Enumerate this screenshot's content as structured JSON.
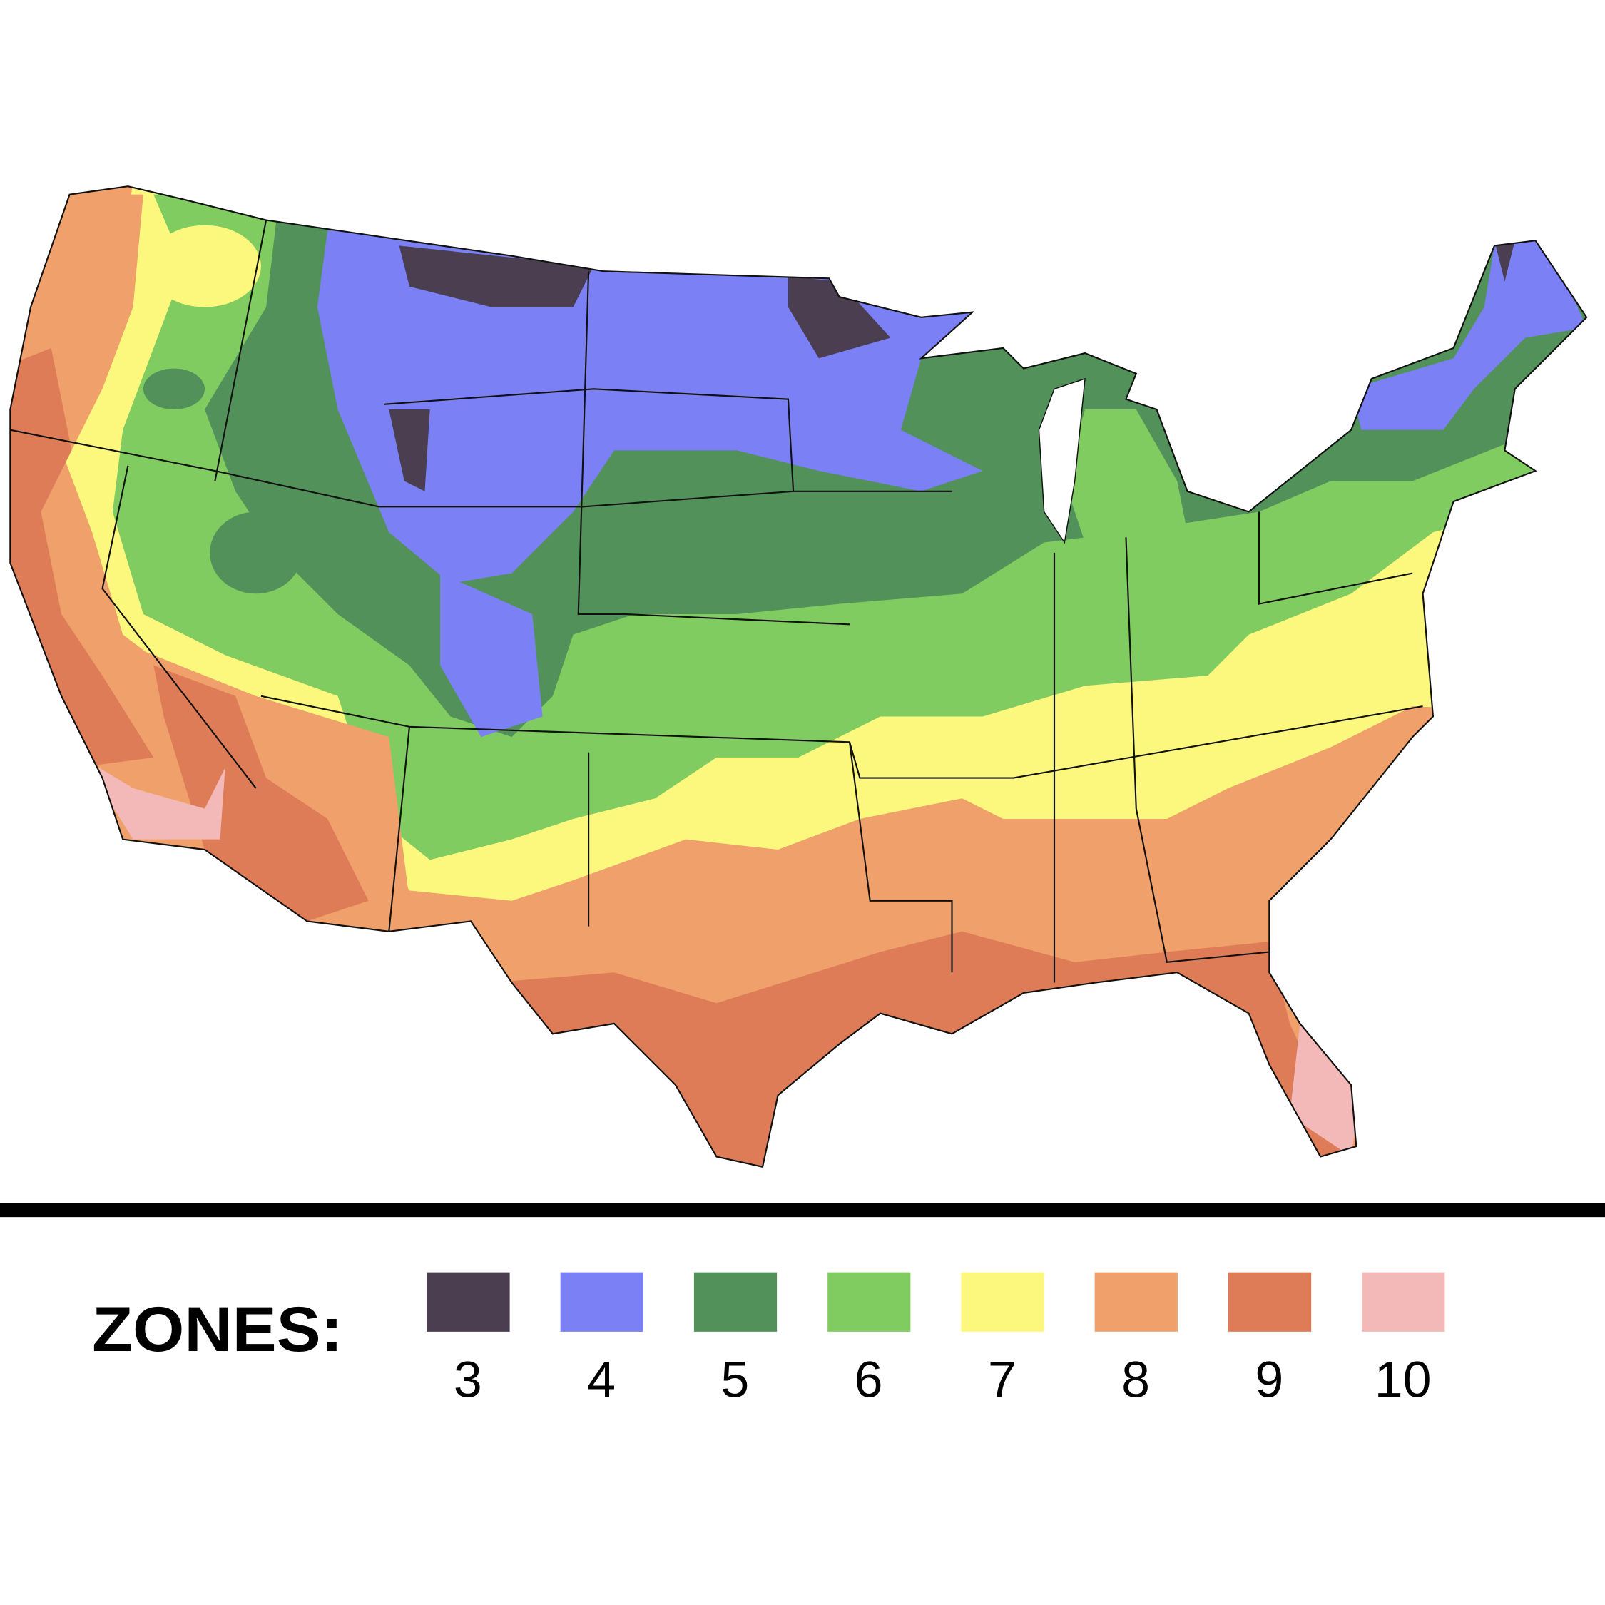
{
  "legend": {
    "title": "ZONES:",
    "zones": [
      {
        "label": "3",
        "color": "#4A3E50"
      },
      {
        "label": "4",
        "color": "#7B80F4"
      },
      {
        "label": "5",
        "color": "#52925A"
      },
      {
        "label": "6",
        "color": "#80CC60"
      },
      {
        "label": "7",
        "color": "#FCF87E"
      },
      {
        "label": "8",
        "color": "#F0A06A"
      },
      {
        "label": "9",
        "color": "#DE7C58"
      },
      {
        "label": "10",
        "color": "#F3B8B8"
      }
    ]
  },
  "map": {
    "border_color": "#111111",
    "lake_color": "#FFFFFF"
  }
}
